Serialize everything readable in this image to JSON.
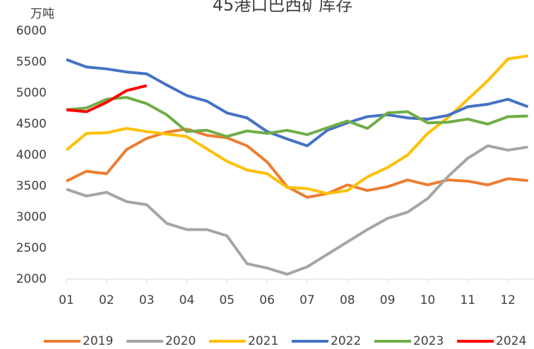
{
  "chart_data": {
    "type": "line",
    "title": "45港口巴西矿库存",
    "y_label": "万吨",
    "x": [
      1,
      1.5,
      2,
      2.5,
      3,
      3.5,
      4,
      4.5,
      5,
      5.5,
      6,
      6.5,
      7,
      7.5,
      8,
      8.5,
      9,
      9.5,
      10,
      10.5,
      11,
      11.5,
      12,
      12.5
    ],
    "xlim": [
      1,
      12.65
    ],
    "xticks": [
      {
        "value": 1,
        "label": "01"
      },
      {
        "value": 2,
        "label": "02"
      },
      {
        "value": 3,
        "label": "03"
      },
      {
        "value": 4,
        "label": "04"
      },
      {
        "value": 5,
        "label": "05"
      },
      {
        "value": 6,
        "label": "06"
      },
      {
        "value": 7,
        "label": "07"
      },
      {
        "value": 8,
        "label": "08"
      },
      {
        "value": 9,
        "label": "09"
      },
      {
        "value": 10,
        "label": "10"
      },
      {
        "value": 11,
        "label": "11"
      },
      {
        "value": 12,
        "label": "12"
      }
    ],
    "ylim": [
      2000,
      6000
    ],
    "yticks": [
      2000,
      2500,
      3000,
      3500,
      4000,
      4500,
      5000,
      5500,
      6000
    ],
    "grid": false,
    "series": [
      {
        "name": "2019",
        "color": "#ed7d31",
        "values": [
          3580,
          3740,
          3700,
          4090,
          4270,
          4370,
          4420,
          4320,
          4280,
          4150,
          3890,
          3490,
          3320,
          3380,
          3520,
          3430,
          3490,
          3600,
          3520,
          3600,
          3580,
          3520,
          3620,
          3590
        ]
      },
      {
        "name": "2020",
        "color": "#a5a5a5",
        "values": [
          3450,
          3340,
          3400,
          3250,
          3200,
          2900,
          2800,
          2800,
          2700,
          2250,
          2180,
          2080,
          2200,
          2400,
          2600,
          2800,
          2980,
          3080,
          3300,
          3650,
          3950,
          4150,
          4080,
          4130
        ]
      },
      {
        "name": "2021",
        "color": "#ffc000",
        "values": [
          4080,
          4350,
          4360,
          4430,
          4380,
          4340,
          4300,
          4100,
          3900,
          3760,
          3700,
          3480,
          3460,
          3380,
          3430,
          3650,
          3800,
          4000,
          4350,
          4600,
          4900,
          5200,
          5550,
          5600
        ]
      },
      {
        "name": "2022",
        "color": "#4472c4",
        "values": [
          5540,
          5420,
          5390,
          5340,
          5310,
          5130,
          4960,
          4870,
          4680,
          4600,
          4380,
          4260,
          4150,
          4400,
          4520,
          4620,
          4650,
          4600,
          4580,
          4640,
          4780,
          4820,
          4900,
          4780
        ]
      },
      {
        "name": "2023",
        "color": "#70ad47",
        "values": [
          4730,
          4760,
          4900,
          4930,
          4830,
          4650,
          4380,
          4400,
          4300,
          4390,
          4350,
          4400,
          4330,
          4440,
          4550,
          4430,
          4680,
          4700,
          4520,
          4530,
          4580,
          4500,
          4620,
          4630
        ]
      },
      {
        "name": "2024",
        "color": "#ff0000",
        "values": [
          4730,
          4700,
          4850,
          5040,
          5120,
          null,
          null,
          null,
          null,
          null,
          null,
          null,
          null,
          null,
          null,
          null,
          null,
          null,
          null,
          null,
          null,
          null,
          null,
          null
        ]
      }
    ]
  }
}
